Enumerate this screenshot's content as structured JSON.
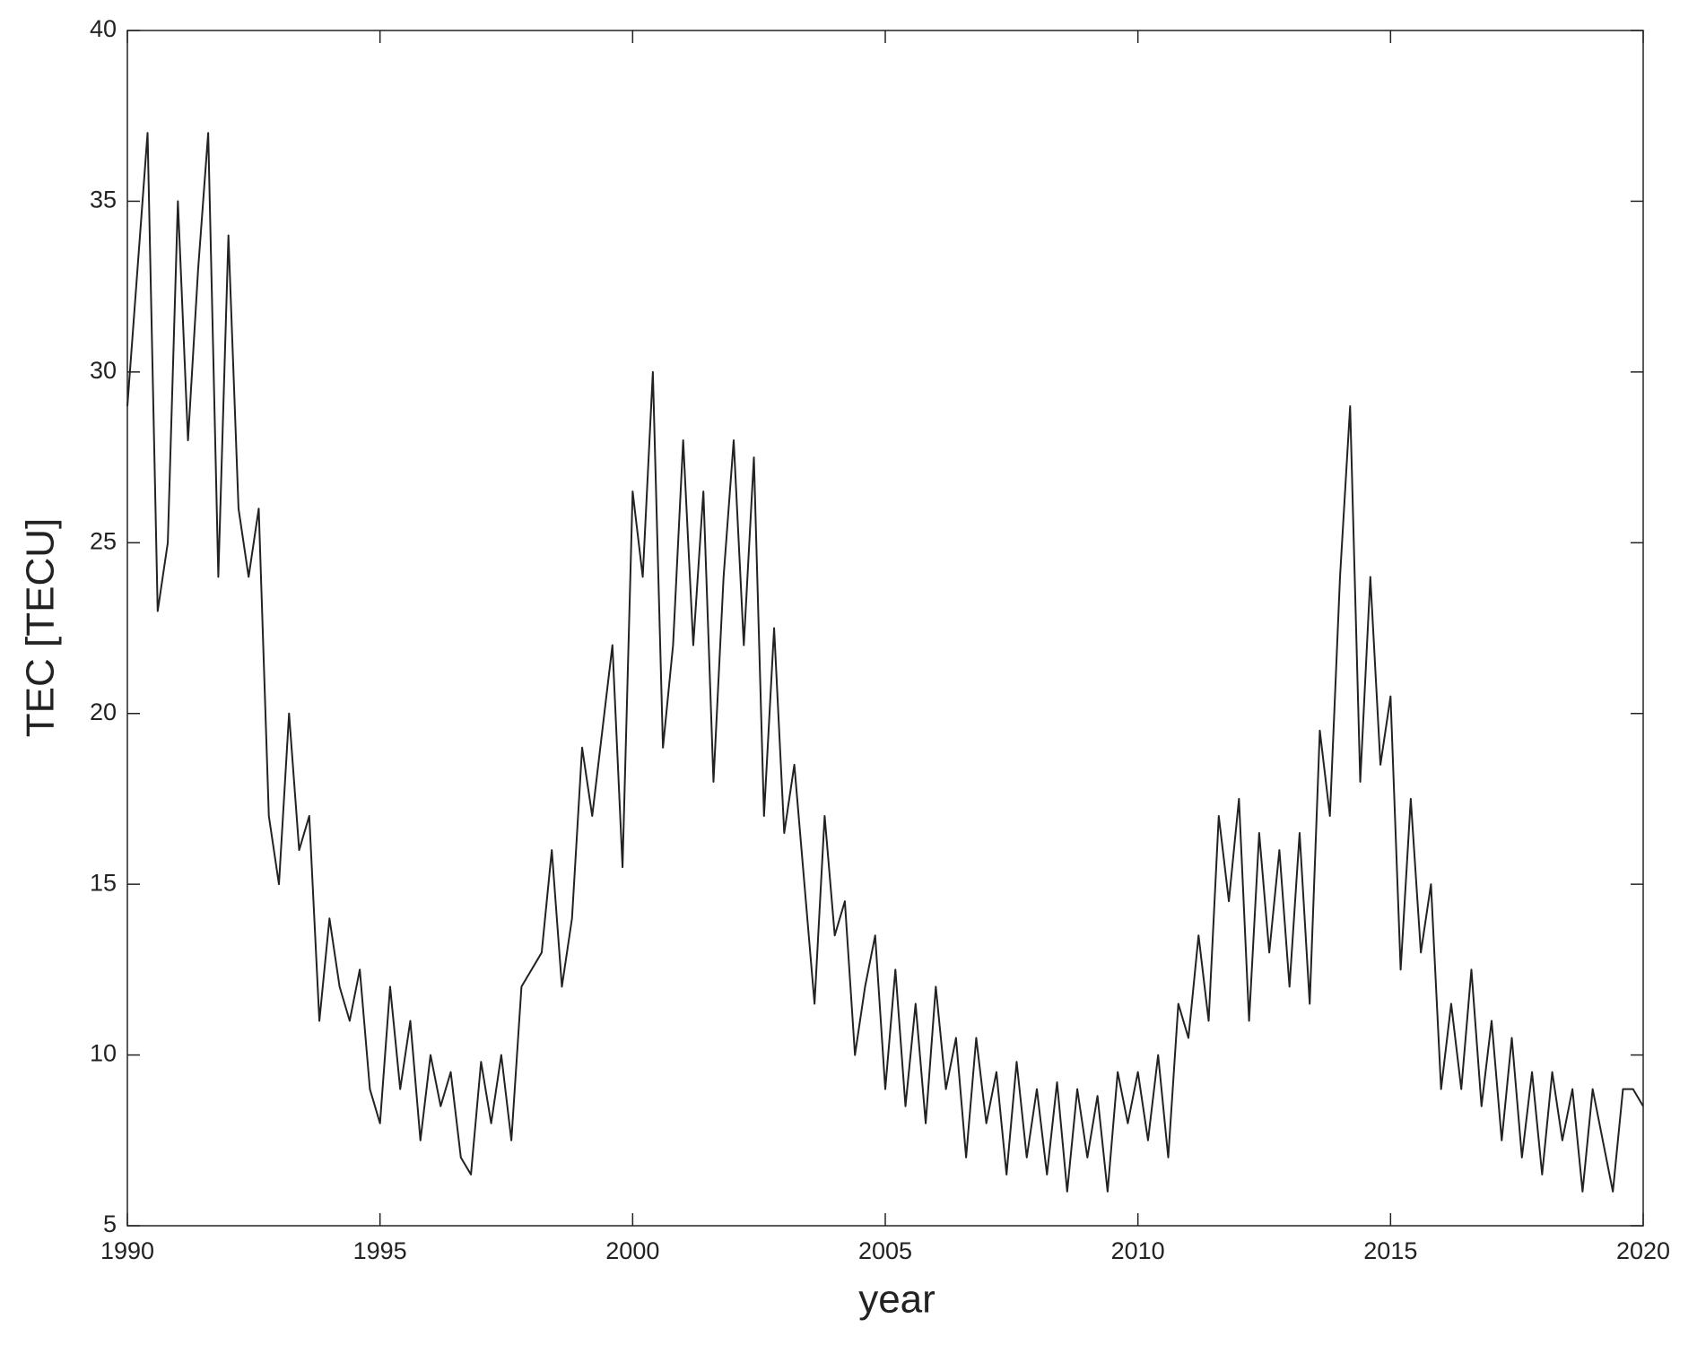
{
  "chart_data": {
    "type": "line",
    "xlabel": "year",
    "ylabel": "TEC [TECU]",
    "x": [
      1990,
      1990.2,
      1990.4,
      1990.6,
      1990.8,
      1991,
      1991.2,
      1991.4,
      1991.6,
      1991.8,
      1992,
      1992.2,
      1992.4,
      1992.6,
      1992.8,
      1993,
      1993.2,
      1993.4,
      1993.6,
      1993.8,
      1994,
      1994.2,
      1994.4,
      1994.6,
      1994.8,
      1995,
      1995.2,
      1995.4,
      1995.6,
      1995.8,
      1996,
      1996.2,
      1996.4,
      1996.6,
      1996.8,
      1997,
      1997.2,
      1997.4,
      1997.6,
      1997.8,
      1998,
      1998.2,
      1998.4,
      1998.6,
      1998.8,
      1999,
      1999.2,
      1999.4,
      1999.6,
      1999.8,
      2000,
      2000.2,
      2000.4,
      2000.6,
      2000.8,
      2001,
      2001.2,
      2001.4,
      2001.6,
      2001.8,
      2002,
      2002.2,
      2002.4,
      2002.6,
      2002.8,
      2003,
      2003.2,
      2003.4,
      2003.6,
      2003.8,
      2004,
      2004.2,
      2004.4,
      2004.6,
      2004.8,
      2005,
      2005.2,
      2005.4,
      2005.6,
      2005.8,
      2006,
      2006.2,
      2006.4,
      2006.6,
      2006.8,
      2007,
      2007.2,
      2007.4,
      2007.6,
      2007.8,
      2008,
      2008.2,
      2008.4,
      2008.6,
      2008.8,
      2009,
      2009.2,
      2009.4,
      2009.6,
      2009.8,
      2010,
      2010.2,
      2010.4,
      2010.6,
      2010.8,
      2011,
      2011.2,
      2011.4,
      2011.6,
      2011.8,
      2012,
      2012.2,
      2012.4,
      2012.6,
      2012.8,
      2013,
      2013.2,
      2013.4,
      2013.6,
      2013.8,
      2014,
      2014.2,
      2014.4,
      2014.6,
      2014.8,
      2015,
      2015.2,
      2015.4,
      2015.6,
      2015.8,
      2016,
      2016.2,
      2016.4,
      2016.6,
      2016.8,
      2017,
      2017.2,
      2017.4,
      2017.6,
      2017.8,
      2018,
      2018.2,
      2018.4,
      2018.6,
      2018.8,
      2019,
      2019.2,
      2019.4,
      2019.6,
      2019.8,
      2020
    ],
    "series": [
      {
        "color": "#222222",
        "values": [
          29,
          33,
          37,
          23,
          25,
          35,
          28,
          33,
          37,
          24,
          34,
          26,
          24,
          26,
          17,
          15,
          20,
          16,
          17,
          11,
          14,
          12,
          11,
          12.5,
          9,
          8,
          12,
          9,
          11,
          7.5,
          10,
          8.5,
          9.5,
          7,
          6.5,
          9.8,
          8,
          10,
          7.5,
          12,
          12.5,
          13,
          16,
          12,
          14,
          19,
          17,
          19.5,
          22,
          15.5,
          26.5,
          24,
          30,
          19,
          22,
          28,
          22,
          26.5,
          18,
          24,
          28,
          22,
          27.5,
          17,
          22.5,
          16.5,
          18.5,
          15,
          11.5,
          17,
          13.5,
          14.5,
          10,
          12,
          13.5,
          9,
          12.5,
          8.5,
          11.5,
          8,
          12,
          9,
          10.5,
          7,
          10.5,
          8,
          9.5,
          6.5,
          9.8,
          7,
          9,
          6.5,
          9.2,
          6,
          9,
          7,
          8.8,
          6,
          9.5,
          8,
          9.5,
          7.5,
          10,
          7,
          11.5,
          10.5,
          13.5,
          11,
          17,
          14.5,
          17.5,
          11,
          16.5,
          13,
          16,
          12,
          16.5,
          11.5,
          19.5,
          17,
          24,
          29,
          18,
          24,
          18.5,
          20.5,
          12.5,
          17.5,
          13,
          15,
          9,
          11.5,
          9,
          12.5,
          8.5,
          11,
          7.5,
          10.5,
          7,
          9.5,
          6.5,
          9.5,
          7.5,
          9,
          6,
          9,
          7.5,
          6,
          9,
          9,
          8.5
        ]
      }
    ],
    "xlim": [
      1990,
      2020
    ],
    "xticks": [
      1990,
      1995,
      2000,
      2005,
      2010,
      2015,
      2020
    ],
    "ylim": [
      5,
      40
    ],
    "yticks": [
      5,
      10,
      15,
      20,
      25,
      30,
      35,
      40
    ],
    "grid": false
  }
}
